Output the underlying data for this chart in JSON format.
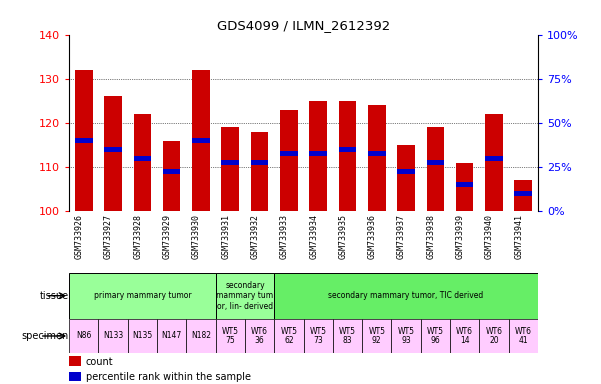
{
  "title": "GDS4099 / ILMN_2612392",
  "samples": [
    "GSM733926",
    "GSM733927",
    "GSM733928",
    "GSM733929",
    "GSM733930",
    "GSM733931",
    "GSM733932",
    "GSM733933",
    "GSM733934",
    "GSM733935",
    "GSM733936",
    "GSM733937",
    "GSM733938",
    "GSM733939",
    "GSM733940",
    "GSM733941"
  ],
  "count_values": [
    132,
    126,
    122,
    116,
    132,
    119,
    118,
    123,
    125,
    125,
    124,
    115,
    119,
    111,
    122,
    107
  ],
  "percentile_values": [
    116,
    114,
    112,
    109,
    116,
    111,
    111,
    113,
    113,
    114,
    113,
    109,
    111,
    106,
    112,
    104
  ],
  "ymin": 100,
  "ymax": 140,
  "yticks": [
    100,
    110,
    120,
    130,
    140
  ],
  "y2min": 0,
  "y2max": 100,
  "y2ticks": [
    0,
    25,
    50,
    75,
    100
  ],
  "y2ticklabels": [
    "0%",
    "25%",
    "50%",
    "75%",
    "100%"
  ],
  "bar_color": "#cc0000",
  "percentile_color": "#0000cc",
  "tissue_groups": [
    {
      "label": "primary mammary tumor",
      "start": 0,
      "end": 5,
      "color": "#99ff99"
    },
    {
      "label": "secondary\nmammary tum\nor, lin- derived",
      "start": 5,
      "end": 7,
      "color": "#99ff99"
    },
    {
      "label": "secondary mammary tumor, TIC derived",
      "start": 7,
      "end": 16,
      "color": "#66ee66"
    }
  ],
  "specimen_labels": [
    "N86",
    "N133",
    "N135",
    "N147",
    "N182",
    "WT5\n75",
    "WT6\n36",
    "WT5\n62",
    "WT5\n73",
    "WT5\n83",
    "WT5\n92",
    "WT5\n93",
    "WT5\n96",
    "WT6\n14",
    "WT6\n20",
    "WT6\n41"
  ],
  "legend_count_color": "#cc0000",
  "legend_percentile_color": "#0000cc",
  "bar_width": 0.6,
  "percentile_bar_height": 1.2,
  "grid_lines": [
    110,
    120,
    130
  ]
}
